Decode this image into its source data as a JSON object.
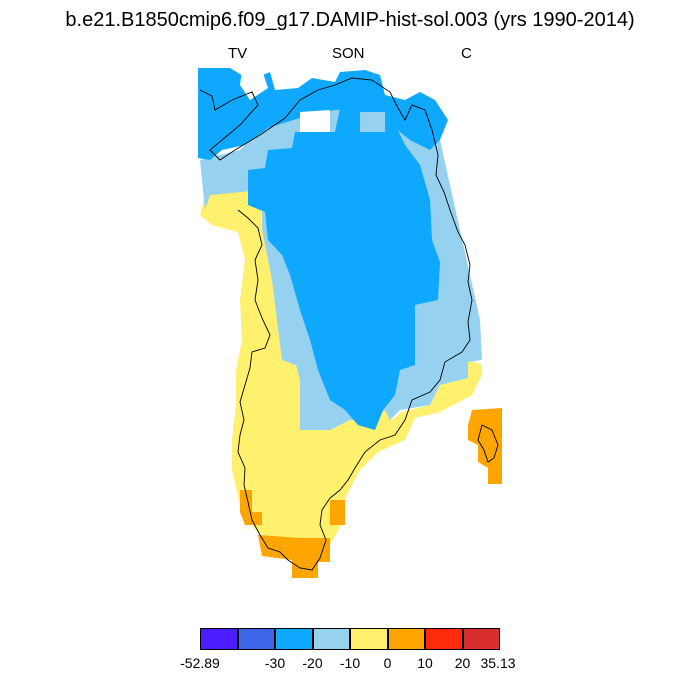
{
  "title": "b.e21.B1850cmip6.f09_g17.DAMIP-hist-sol.003 (yrs 1990-2014)",
  "subtitle_left": "TV",
  "subtitle_center": "SON",
  "subtitle_right": "C",
  "colorbar": {
    "colors": [
      "#4b1eff",
      "#3d67e6",
      "#0ea8ff",
      "#96d2f0",
      "#fff06e",
      "#ffa500",
      "#ff2a0a",
      "#d92e2e"
    ],
    "labels": [
      "-52.89",
      "-30",
      "-20",
      "-10",
      "0",
      "10",
      "20",
      "35.13"
    ]
  }
}
